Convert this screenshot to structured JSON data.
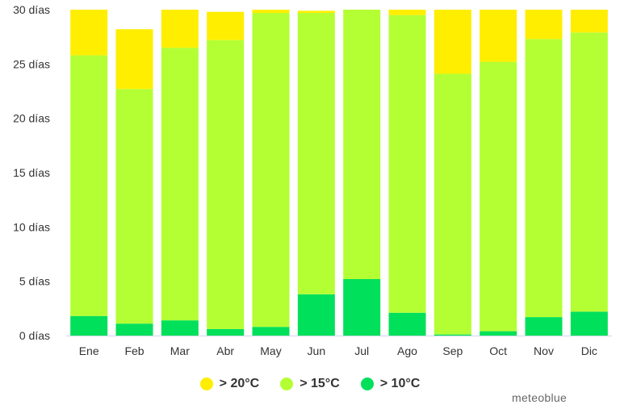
{
  "chart_data": {
    "type": "bar",
    "stacked": true,
    "categories": [
      "Ene",
      "Feb",
      "Mar",
      "Abr",
      "May",
      "Jun",
      "Jul",
      "Ago",
      "Sep",
      "Oct",
      "Nov",
      "Dic"
    ],
    "series": [
      {
        "name": "> 10°C",
        "color": "#00e05a",
        "values": [
          1.8,
          1.1,
          1.4,
          0.6,
          0.8,
          3.8,
          5.2,
          2.1,
          0.1,
          0.4,
          1.7,
          2.2
        ]
      },
      {
        "name": "> 15°C",
        "color": "#b3ff33",
        "values": [
          24.0,
          21.6,
          25.1,
          26.6,
          28.9,
          25.9,
          24.8,
          27.4,
          24.0,
          24.8,
          25.6,
          25.7
        ]
      },
      {
        "name": "> 20°C",
        "color": "#ffee00",
        "values": [
          4.2,
          5.5,
          3.5,
          2.6,
          0.3,
          0.2,
          0.0,
          0.5,
          5.9,
          4.8,
          2.7,
          2.1
        ]
      }
    ],
    "ylim": [
      0,
      30
    ],
    "yticks": [
      0,
      5,
      10,
      15,
      20,
      25,
      30
    ],
    "ytick_labels": [
      "0 días",
      "5 días",
      "10 días",
      "15 días",
      "20 días",
      "25 días",
      "30 días"
    ],
    "legend_order": [
      "> 20°C",
      "> 15°C",
      "> 10°C"
    ],
    "legend_position": "bottom-center",
    "grid": false
  },
  "credit": "meteoblue"
}
